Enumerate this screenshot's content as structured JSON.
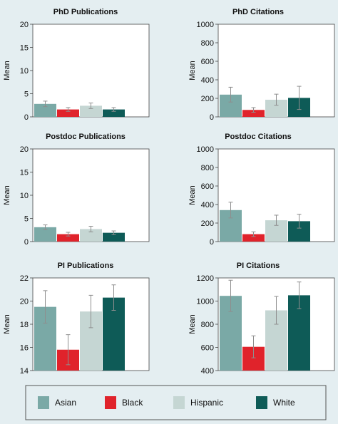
{
  "colors": {
    "background": "#e4eef1",
    "asian": "#7aa9a6",
    "black": "#e0232b",
    "hispanic": "#c5d6d3",
    "white": "#0e5b57",
    "error_bar": "#8e8e8e",
    "axis": "#444444"
  },
  "legend": {
    "items": [
      {
        "label": "Asian",
        "color": "#7aa9a6"
      },
      {
        "label": "Black",
        "color": "#e0232b"
      },
      {
        "label": "Hispanic",
        "color": "#c5d6d3"
      },
      {
        "label": "White",
        "color": "#0e5b57"
      }
    ]
  },
  "chart_data": [
    {
      "type": "bar",
      "title": "PhD Publications",
      "ylabel": "Mean",
      "ylim": [
        0,
        20
      ],
      "yticks": [
        0,
        5,
        10,
        15,
        20
      ],
      "categories": [
        "Asian",
        "Black",
        "Hispanic",
        "White"
      ],
      "values": [
        2.8,
        1.6,
        2.4,
        1.6
      ],
      "errors": [
        0.6,
        0.4,
        0.6,
        0.4
      ]
    },
    {
      "type": "bar",
      "title": "PhD Citations",
      "ylabel": "Mean",
      "ylim": [
        0,
        1000
      ],
      "yticks": [
        0,
        200,
        400,
        600,
        800,
        1000
      ],
      "categories": [
        "Asian",
        "Black",
        "Hispanic",
        "White"
      ],
      "values": [
        240,
        75,
        185,
        205
      ],
      "errors": [
        80,
        25,
        60,
        125
      ]
    },
    {
      "type": "bar",
      "title": "Postdoc Publications",
      "ylabel": "Mean",
      "ylim": [
        0,
        20
      ],
      "yticks": [
        0,
        5,
        10,
        15,
        20
      ],
      "categories": [
        "Asian",
        "Black",
        "Hispanic",
        "White"
      ],
      "values": [
        3.1,
        1.6,
        2.7,
        1.9
      ],
      "errors": [
        0.5,
        0.4,
        0.6,
        0.4
      ]
    },
    {
      "type": "bar",
      "title": "Postdoc Citations",
      "ylabel": "Mean",
      "ylim": [
        0,
        1000
      ],
      "yticks": [
        0,
        200,
        400,
        600,
        800,
        1000
      ],
      "categories": [
        "Asian",
        "Black",
        "Hispanic",
        "White"
      ],
      "values": [
        340,
        80,
        230,
        220
      ],
      "errors": [
        85,
        25,
        55,
        75
      ]
    },
    {
      "type": "bar",
      "title": "PI Publications",
      "ylabel": "Mean",
      "ylim": [
        14,
        22
      ],
      "yticks": [
        14,
        16,
        18,
        20,
        22
      ],
      "categories": [
        "Asian",
        "Black",
        "Hispanic",
        "White"
      ],
      "values": [
        19.5,
        15.8,
        19.1,
        20.3
      ],
      "errors": [
        1.4,
        1.3,
        1.4,
        1.1
      ]
    },
    {
      "type": "bar",
      "title": "PI Citations",
      "ylabel": "Mean",
      "ylim": [
        400,
        1200
      ],
      "yticks": [
        400,
        600,
        800,
        1000,
        1200
      ],
      "categories": [
        "Asian",
        "Black",
        "Hispanic",
        "White"
      ],
      "values": [
        1045,
        605,
        920,
        1050
      ],
      "errors": [
        135,
        95,
        120,
        115
      ]
    }
  ]
}
